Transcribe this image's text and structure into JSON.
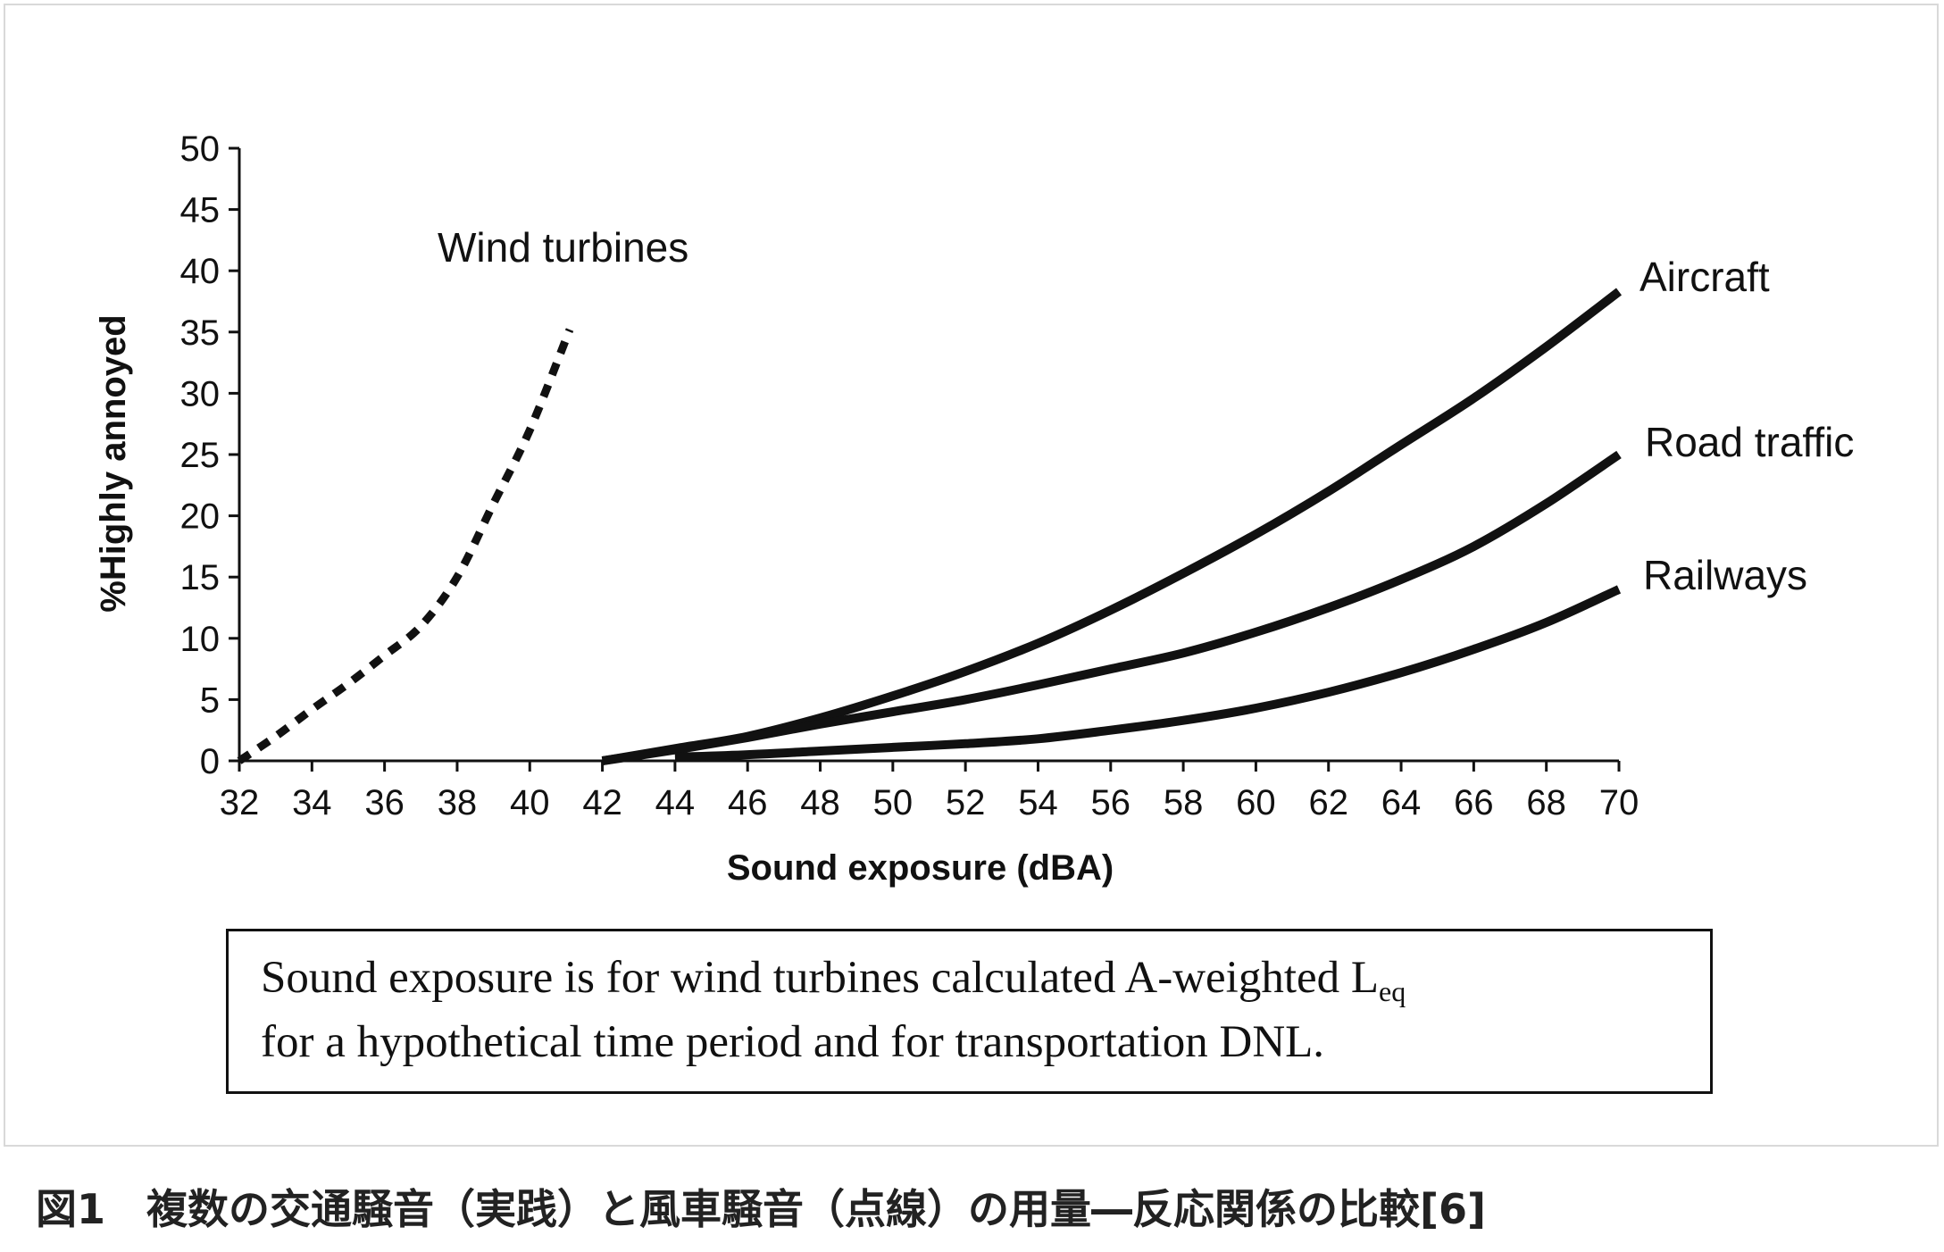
{
  "caption": "図1　複数の交通騒音（実践）と風車騒音（点線）の用量―反応関係の比較[6]",
  "note": {
    "line1": "Sound exposure is for wind turbines calculated A-weighted L",
    "line1_sub": "eq",
    "line2": "for a hypothetical time period and for transportation DNL."
  },
  "chart_data": {
    "type": "line",
    "xlabel": "Sound exposure (dBA)",
    "ylabel": "%Highly annoyed",
    "xlim": [
      32,
      70
    ],
    "ylim": [
      0,
      50
    ],
    "xticks": [
      32,
      34,
      36,
      38,
      40,
      42,
      44,
      46,
      48,
      50,
      52,
      54,
      56,
      58,
      60,
      62,
      64,
      66,
      68,
      70
    ],
    "yticks": [
      0,
      5,
      10,
      15,
      20,
      25,
      30,
      35,
      40,
      45,
      50
    ],
    "grid": false,
    "legend": "none (series labels placed next to curves)",
    "series": [
      {
        "name": "Wind turbines",
        "style": "dotted",
        "color": "#111111",
        "points": [
          [
            32,
            0
          ],
          [
            33,
            2
          ],
          [
            34,
            4.2
          ],
          [
            35,
            6.3
          ],
          [
            36,
            8.6
          ],
          [
            37,
            11
          ],
          [
            38,
            15
          ],
          [
            39,
            21
          ],
          [
            40,
            27
          ],
          [
            41.1,
            35.2
          ]
        ]
      },
      {
        "name": "Aircraft",
        "style": "solid",
        "color": "#111111",
        "points": [
          [
            42,
            0
          ],
          [
            44,
            1
          ],
          [
            46,
            2
          ],
          [
            48,
            3.5
          ],
          [
            50,
            5.3
          ],
          [
            52,
            7.3
          ],
          [
            54,
            9.6
          ],
          [
            56,
            12.3
          ],
          [
            58,
            15.3
          ],
          [
            60,
            18.5
          ],
          [
            62,
            22
          ],
          [
            64,
            25.8
          ],
          [
            66,
            29.6
          ],
          [
            68,
            33.8
          ],
          [
            70,
            38.3
          ]
        ]
      },
      {
        "name": "Road traffic",
        "style": "solid",
        "color": "#111111",
        "points": [
          [
            42,
            0
          ],
          [
            44,
            0.9
          ],
          [
            46,
            1.9
          ],
          [
            48,
            3
          ],
          [
            50,
            4
          ],
          [
            52,
            5
          ],
          [
            54,
            6.2
          ],
          [
            56,
            7.5
          ],
          [
            58,
            8.8
          ],
          [
            60,
            10.5
          ],
          [
            62,
            12.5
          ],
          [
            64,
            14.8
          ],
          [
            66,
            17.5
          ],
          [
            68,
            21
          ],
          [
            70,
            25
          ]
        ]
      },
      {
        "name": "Railways",
        "style": "solid",
        "color": "#111111",
        "points": [
          [
            44,
            0.3
          ],
          [
            46,
            0.5
          ],
          [
            48,
            0.8
          ],
          [
            50,
            1.1
          ],
          [
            52,
            1.4
          ],
          [
            54,
            1.8
          ],
          [
            56,
            2.5
          ],
          [
            58,
            3.3
          ],
          [
            60,
            4.3
          ],
          [
            62,
            5.6
          ],
          [
            64,
            7.2
          ],
          [
            66,
            9.1
          ],
          [
            68,
            11.3
          ],
          [
            70,
            14
          ]
        ]
      }
    ]
  }
}
